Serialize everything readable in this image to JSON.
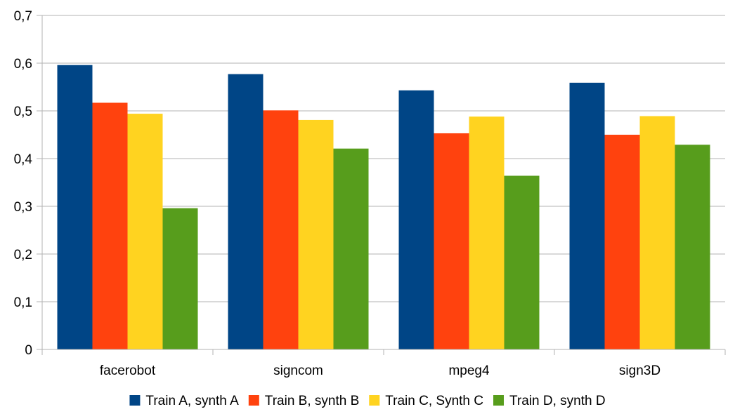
{
  "chart_data": {
    "type": "bar",
    "categories": [
      "facerobot",
      "signcom",
      "mpeg4",
      "sign3D"
    ],
    "series": [
      {
        "name": "Train A, synth A",
        "color": "#004586",
        "values": [
          0.596,
          0.577,
          0.543,
          0.559
        ]
      },
      {
        "name": "Train B, synth B",
        "color": "#ff420e",
        "values": [
          0.517,
          0.501,
          0.453,
          0.45
        ]
      },
      {
        "name": "Train C, Synth C",
        "color": "#ffd320",
        "values": [
          0.494,
          0.481,
          0.488,
          0.489
        ]
      },
      {
        "name": "Train D, synth D",
        "color": "#579d1c",
        "values": [
          0.296,
          0.421,
          0.364,
          0.429
        ]
      }
    ],
    "ylim": [
      0,
      0.7
    ],
    "yticks": [
      0,
      0.1,
      0.2,
      0.3,
      0.4,
      0.5,
      0.6,
      0.7
    ],
    "ytick_labels": [
      "0",
      "0,1",
      "0,2",
      "0,3",
      "0,4",
      "0,5",
      "0,6",
      "0,7"
    ],
    "grid": true,
    "legend_position": "bottom"
  }
}
